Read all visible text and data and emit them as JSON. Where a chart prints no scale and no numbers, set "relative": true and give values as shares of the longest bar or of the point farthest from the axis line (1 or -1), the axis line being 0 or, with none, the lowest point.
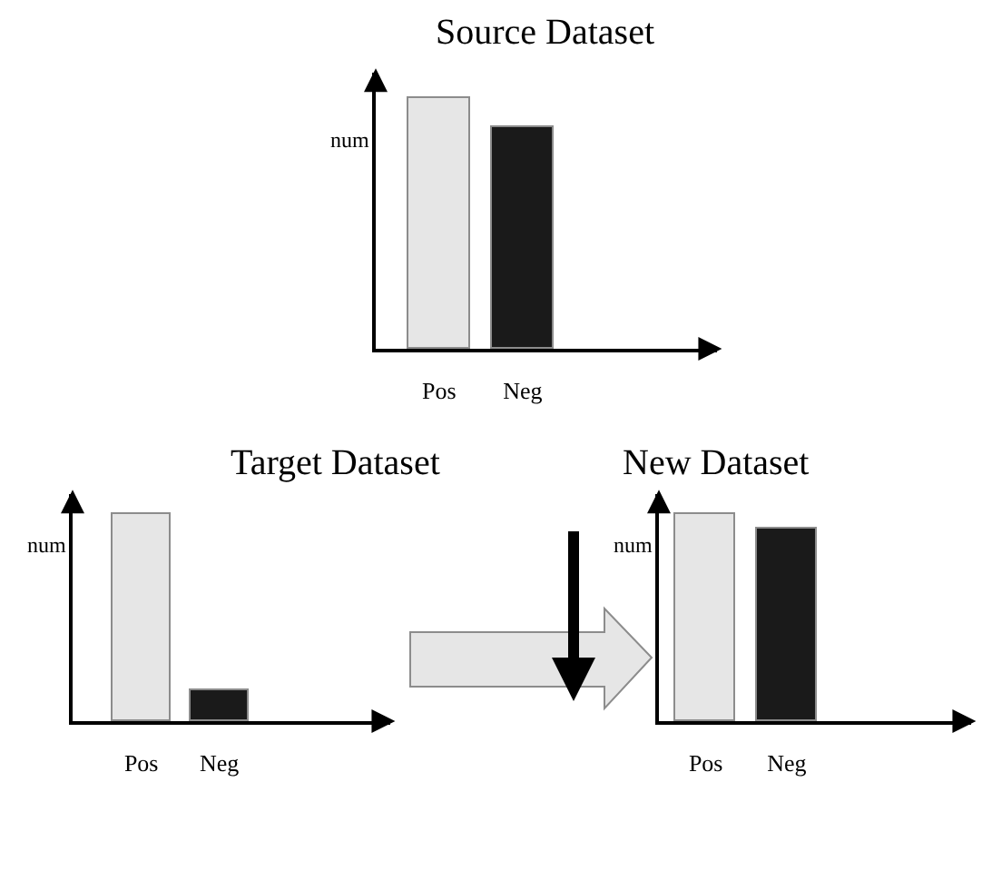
{
  "chart_data": [
    {
      "type": "bar",
      "title": "Source Dataset",
      "ylabel": "num",
      "categories": [
        "Pos",
        "Neg"
      ],
      "values": [
        1,
        0.88
      ],
      "colors": [
        "#e6e6e6",
        "#1a1a1a"
      ],
      "relative": true
    },
    {
      "type": "bar",
      "title": "Target Dataset",
      "ylabel": "num",
      "categories": [
        "Pos",
        "Neg"
      ],
      "values": [
        1,
        0.15
      ],
      "colors": [
        "#e6e6e6",
        "#1a1a1a"
      ],
      "relative": true
    },
    {
      "type": "bar",
      "title": "New Dataset",
      "ylabel": "num",
      "categories": [
        "Pos",
        "Neg"
      ],
      "values": [
        1,
        0.93
      ],
      "colors": [
        "#e6e6e6",
        "#1a1a1a"
      ],
      "relative": true
    }
  ]
}
